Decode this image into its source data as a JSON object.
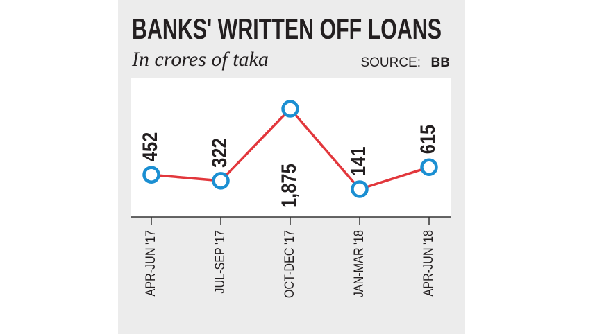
{
  "chart_data": {
    "type": "line",
    "title": "BANKS' WRITTEN OFF LOANS",
    "subtitle": "In crores of taka",
    "source_label": "SOURCE:",
    "source": "BB",
    "categories": [
      "APR-JUN '17",
      "JUL-SEP '17",
      "OCT-DEC '17",
      "JAN-MAR '18",
      "APR-JUN '18"
    ],
    "values": [
      452,
      322,
      1875,
      141,
      615
    ],
    "value_labels": [
      "452",
      "322",
      "1,875",
      "141",
      "615"
    ],
    "color": "#e2373c",
    "marker_color": "#1b8fd2"
  }
}
